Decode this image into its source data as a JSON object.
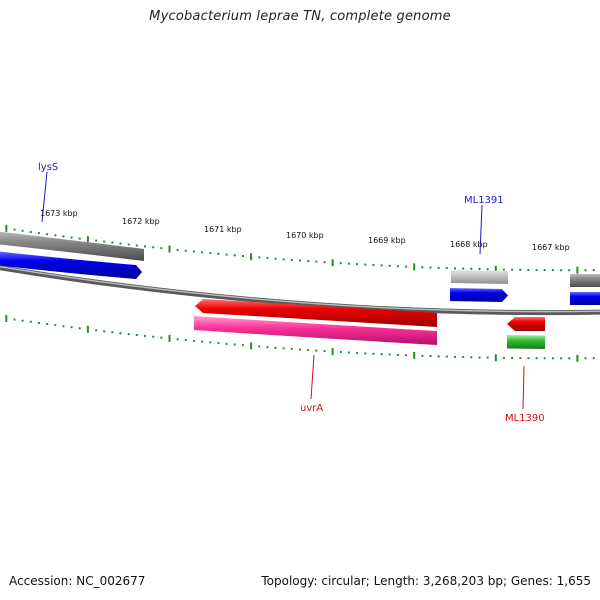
{
  "title": "Mycobacterium leprae TN, complete genome",
  "footer": {
    "accession": "Accession: NC_002677",
    "summary": "Topology: circular; Length: 3,268,203 bp; Genes: 1,655"
  },
  "ticks": [
    {
      "pos_kbp": 1673,
      "label": "1673 kbp"
    },
    {
      "pos_kbp": 1672,
      "label": "1672 kbp"
    },
    {
      "pos_kbp": 1671,
      "label": "1671 kbp"
    },
    {
      "pos_kbp": 1670,
      "label": "1670 kbp"
    },
    {
      "pos_kbp": 1669,
      "label": "1669 kbp"
    },
    {
      "pos_kbp": 1668,
      "label": "1668 kbp"
    },
    {
      "pos_kbp": 1667,
      "label": "1667 kbp"
    }
  ],
  "gene_labels": [
    {
      "name": "lysS",
      "color": "#1a1acc"
    },
    {
      "name": "ML1391",
      "color": "#1a1acc"
    },
    {
      "name": "uvrA",
      "color": "#cc1111"
    },
    {
      "name": "ML1390",
      "color": "#cc1111"
    }
  ],
  "colors": {
    "backbone": "#888888",
    "forward_cds": "#0000ee",
    "forward_gene": "#777777",
    "reverse_cds": "#ee0000",
    "reverse_gene_magenta": "#ff3399",
    "reverse_gene_green": "#33bb33",
    "ticks": "#2a8a2a"
  }
}
